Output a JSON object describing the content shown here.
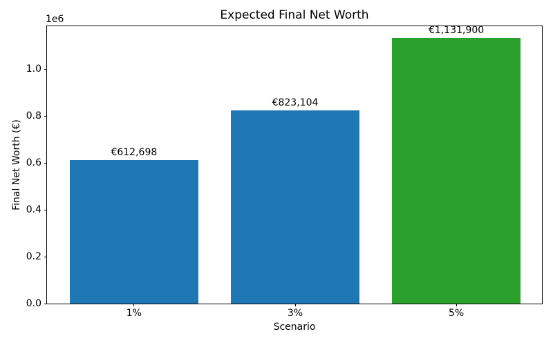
{
  "chart_data": {
    "type": "bar",
    "title": "Expected Final Net Worth",
    "xlabel": "Scenario",
    "ylabel": "Final Net Worth (€)",
    "offset_text": "1e6",
    "categories": [
      "1%",
      "3%",
      "5%"
    ],
    "values": [
      612698,
      823104,
      1131900
    ],
    "bar_labels": [
      "€612,698",
      "€823,104",
      "€1,131,900"
    ],
    "bar_colors": [
      "#1f77b4",
      "#1f77b4",
      "#2ca02c"
    ],
    "ylim": [
      0,
      1188495
    ],
    "yticks": [
      0,
      200000,
      400000,
      600000,
      800000,
      1000000
    ],
    "ytick_labels": [
      "0.0",
      "0.2",
      "0.4",
      "0.6",
      "0.8",
      "1.0"
    ],
    "grid": false,
    "legend": null,
    "bar_width_fraction": 0.8
  }
}
